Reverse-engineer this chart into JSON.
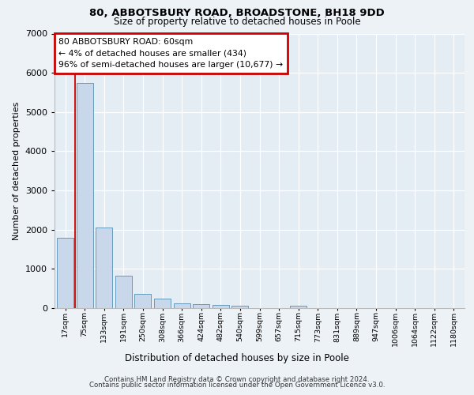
{
  "title_line1": "80, ABBOTSBURY ROAD, BROADSTONE, BH18 9DD",
  "title_line2": "Size of property relative to detached houses in Poole",
  "xlabel": "Distribution of detached houses by size in Poole",
  "ylabel": "Number of detached properties",
  "footer_line1": "Contains HM Land Registry data © Crown copyright and database right 2024.",
  "footer_line2": "Contains public sector information licensed under the Open Government Licence v3.0.",
  "annotation_line1": "80 ABBOTSBURY ROAD: 60sqm",
  "annotation_line2": "← 4% of detached houses are smaller (434)",
  "annotation_line3": "96% of semi-detached houses are larger (10,677) →",
  "bar_color": "#c8d8ea",
  "bar_edge_color": "#6699bb",
  "redline_x": 0.5,
  "annotation_box_edge": "#cc0000",
  "categories": [
    "17sqm",
    "75sqm",
    "133sqm",
    "191sqm",
    "250sqm",
    "308sqm",
    "366sqm",
    "424sqm",
    "482sqm",
    "540sqm",
    "599sqm",
    "657sqm",
    "715sqm",
    "773sqm",
    "831sqm",
    "889sqm",
    "947sqm",
    "1006sqm",
    "1064sqm",
    "1122sqm",
    "1180sqm"
  ],
  "values": [
    1800,
    5750,
    2050,
    820,
    370,
    250,
    130,
    110,
    90,
    70,
    0,
    0,
    65,
    0,
    0,
    0,
    0,
    0,
    0,
    0,
    0
  ],
  "ylim": [
    0,
    7000
  ],
  "yticks": [
    0,
    1000,
    2000,
    3000,
    4000,
    5000,
    6000,
    7000
  ],
  "background_color": "#edf2f7",
  "plot_bg_color": "#e4ecf4",
  "grid_color": "#ffffff"
}
